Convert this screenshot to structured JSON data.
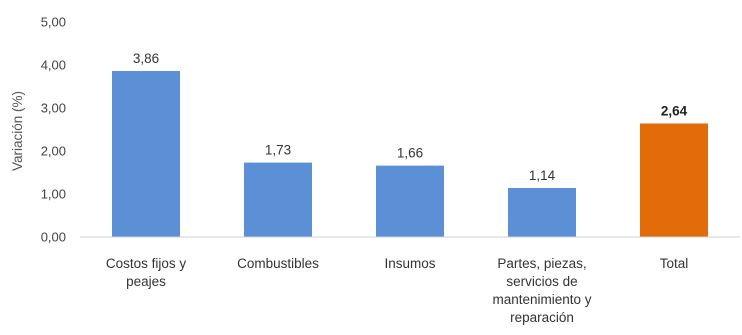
{
  "chart_data": {
    "type": "bar",
    "title": "",
    "xlabel": "",
    "ylabel": "Variación (%)",
    "ylim": [
      0,
      5
    ],
    "yticks": [
      "0,00",
      "1,00",
      "2,00",
      "3,00",
      "4,00",
      "5,00"
    ],
    "grid": false,
    "legend": "none",
    "categories": [
      [
        "Costos fijos y",
        "peajes"
      ],
      [
        "Combustibles"
      ],
      [
        "Insumos"
      ],
      [
        "Partes, piezas,",
        "servicios de",
        "mantenimiento y",
        "reparación"
      ],
      [
        "Total"
      ]
    ],
    "values": [
      3.86,
      1.73,
      1.66,
      1.14,
      2.64
    ],
    "value_labels": [
      "3,86",
      "1,73",
      "1,66",
      "1,14",
      "2,64"
    ],
    "bar_colors": [
      "#5B8FD6",
      "#5B8FD6",
      "#5B8FD6",
      "#5B8FD6",
      "#E36C0A"
    ],
    "bold_labels": [
      false,
      false,
      false,
      false,
      true
    ]
  }
}
